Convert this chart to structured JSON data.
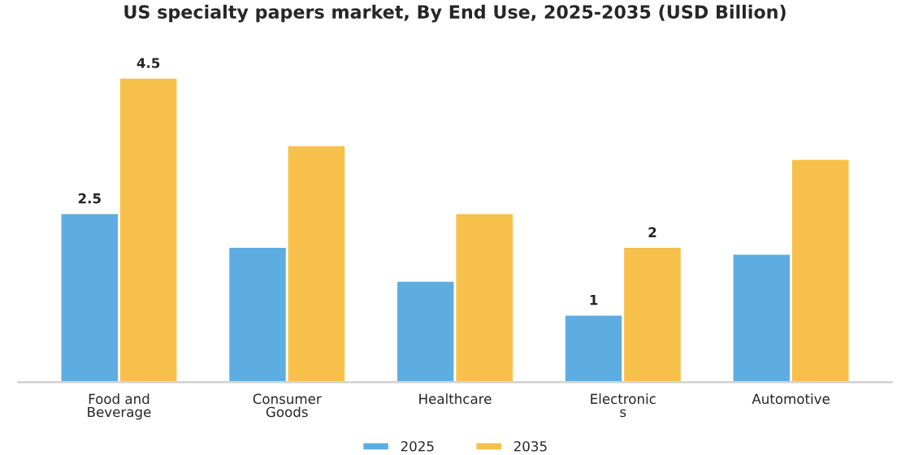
{
  "chart_data": {
    "type": "bar",
    "title": "US specialty papers market, By End Use, 2025-2035 (USD Billion)",
    "categories": [
      "Food and\nBeverage",
      "Consumer\nGoods",
      "Healthcare",
      "Electronic\ns",
      "Automotive"
    ],
    "series": [
      {
        "name": "2025",
        "color": "#5dade2",
        "values": [
          2.5,
          2.0,
          1.5,
          1.0,
          1.9
        ],
        "value_labels": [
          "2.5",
          null,
          null,
          "1",
          null
        ]
      },
      {
        "name": "2035",
        "color": "#f7c04a",
        "values": [
          4.5,
          3.5,
          2.5,
          2.0,
          3.3
        ],
        "value_labels": [
          "4.5",
          null,
          null,
          "2",
          null
        ]
      }
    ],
    "tick_labels": "x",
    "grid": false,
    "legend": "bottom"
  }
}
